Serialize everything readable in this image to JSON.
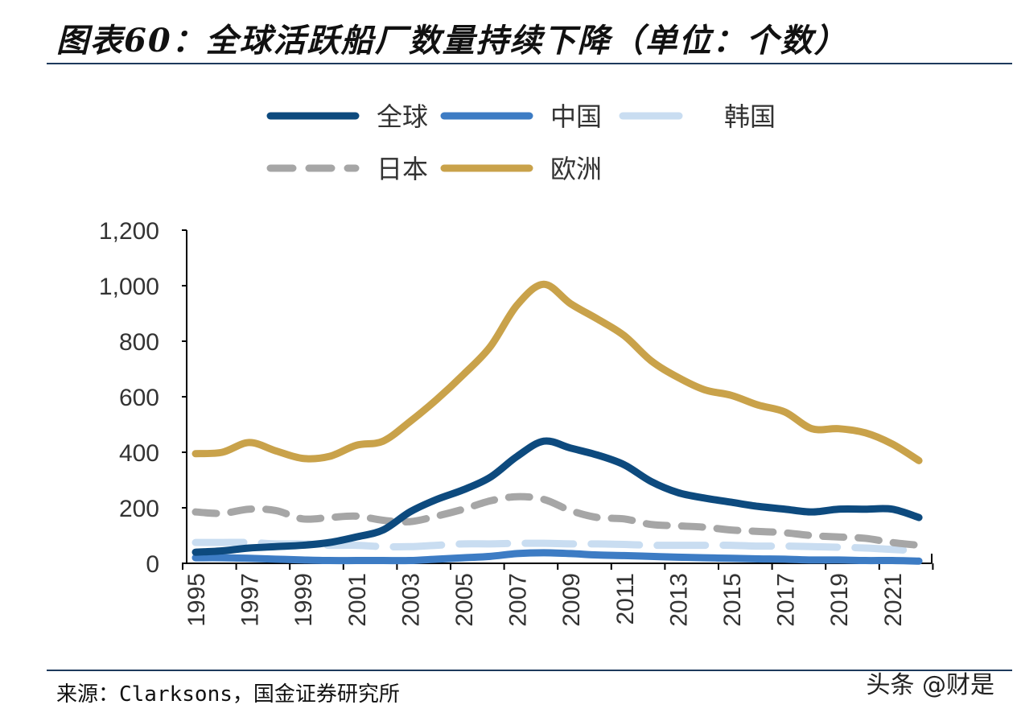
{
  "title": "图表60：全球活跃船厂数量持续下降（单位：个数）",
  "source": "来源：Clarksons，国金证券研究所",
  "watermark": "头条 @财是",
  "chart_data": {
    "type": "line",
    "title": "图表60：全球活跃船厂数量持续下降（单位：个数）",
    "x": [
      1995,
      1996,
      1997,
      1998,
      1999,
      2000,
      2001,
      2002,
      2003,
      2004,
      2005,
      2006,
      2007,
      2008,
      2009,
      2010,
      2011,
      2012,
      2013,
      2014,
      2015,
      2016,
      2017,
      2018,
      2019,
      2020,
      2021,
      2022
    ],
    "x_tick_labels": [
      "1995",
      "1997",
      "1999",
      "2001",
      "2003",
      "2005",
      "2007",
      "2009",
      "2011",
      "2013",
      "2015",
      "2017",
      "2019",
      "2021"
    ],
    "y_tick_labels": [
      "0",
      "200",
      "400",
      "600",
      "800",
      "1,000",
      "1,200"
    ],
    "ylim": [
      0,
      1200
    ],
    "grid": false,
    "legend_placement": "top",
    "series": [
      {
        "name": "全球",
        "color": "#0d4a7e",
        "dash": "solid",
        "values": [
          40,
          45,
          55,
          60,
          65,
          75,
          95,
          120,
          185,
          230,
          265,
          310,
          385,
          440,
          415,
          390,
          355,
          295,
          255,
          235,
          220,
          205,
          195,
          185,
          195,
          195,
          195,
          165
        ]
      },
      {
        "name": "中国",
        "color": "#3d7cc4",
        "dash": "solid",
        "values": [
          20,
          20,
          18,
          15,
          12,
          10,
          10,
          10,
          10,
          15,
          20,
          25,
          35,
          38,
          35,
          30,
          28,
          25,
          22,
          20,
          18,
          16,
          15,
          12,
          12,
          10,
          10,
          8
        ]
      },
      {
        "name": "韩国",
        "color": "#c9ddf1",
        "dash": "long-dash",
        "values": [
          75,
          75,
          75,
          70,
          70,
          65,
          65,
          60,
          60,
          65,
          70,
          70,
          72,
          72,
          70,
          70,
          68,
          65,
          65,
          65,
          65,
          62,
          62,
          60,
          58,
          55,
          50,
          45
        ]
      },
      {
        "name": "日本",
        "color": "#a6a6a6",
        "dash": "dash",
        "values": [
          185,
          180,
          195,
          190,
          160,
          165,
          170,
          155,
          150,
          170,
          195,
          225,
          240,
          230,
          190,
          165,
          160,
          140,
          135,
          130,
          120,
          115,
          110,
          100,
          95,
          90,
          75,
          65
        ]
      },
      {
        "name": "欧洲",
        "color": "#c9a24a",
        "dash": "solid",
        "values": [
          395,
          400,
          435,
          405,
          378,
          385,
          425,
          440,
          510,
          590,
          680,
          780,
          930,
          1005,
          935,
          880,
          820,
          730,
          670,
          625,
          605,
          570,
          545,
          485,
          485,
          470,
          430,
          370
        ]
      }
    ]
  }
}
